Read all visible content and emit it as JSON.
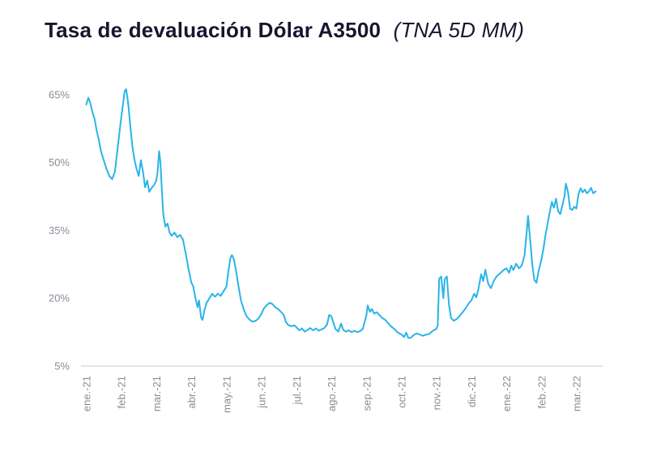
{
  "header": {
    "title": "Tasa de devaluación Dólar A3500",
    "subtitle": "(TNA 5D MM)"
  },
  "colors": {
    "line": "#29b4e8",
    "axis_line": "#d9dce1",
    "tick_text": "#8b8b98",
    "title_text": "#17162e",
    "background": "#ffffff"
  },
  "chart_data": {
    "type": "line",
    "title": "Tasa de devaluación Dólar A3500 (TNA 5D MM)",
    "xlabel": "",
    "ylabel": "",
    "grid": false,
    "legend": "none",
    "xlim": [
      -0.15,
      14.75
    ],
    "ylim": [
      5,
      68
    ],
    "y_ticks": [
      {
        "value": 5,
        "label": "5%"
      },
      {
        "value": 20,
        "label": "20%"
      },
      {
        "value": 35,
        "label": "35%"
      },
      {
        "value": 50,
        "label": "50%"
      },
      {
        "value": 65,
        "label": "65%"
      }
    ],
    "x_ticks": [
      {
        "value": 0,
        "label": "ene.-21"
      },
      {
        "value": 1,
        "label": "feb.-21"
      },
      {
        "value": 2,
        "label": "mar.-21"
      },
      {
        "value": 3,
        "label": "abr.-21"
      },
      {
        "value": 4,
        "label": "may.-21"
      },
      {
        "value": 5,
        "label": "jun.-21"
      },
      {
        "value": 6,
        "label": "jul.-21"
      },
      {
        "value": 7,
        "label": "ago.-21"
      },
      {
        "value": 8,
        "label": "sep.-21"
      },
      {
        "value": 9,
        "label": "oct.-21"
      },
      {
        "value": 10,
        "label": "nov.-21"
      },
      {
        "value": 11,
        "label": "dic.-21"
      },
      {
        "value": 12,
        "label": "ene.-22"
      },
      {
        "value": 13,
        "label": "feb.-22"
      },
      {
        "value": 14,
        "label": "mar.-22"
      }
    ],
    "series": [
      {
        "name": "TNA 5D MM",
        "points": [
          [
            0.0,
            62.8
          ],
          [
            0.06,
            64.3
          ],
          [
            0.12,
            63.0
          ],
          [
            0.18,
            61.0
          ],
          [
            0.24,
            59.5
          ],
          [
            0.3,
            57.0
          ],
          [
            0.36,
            55.0
          ],
          [
            0.42,
            52.5
          ],
          [
            0.5,
            50.5
          ],
          [
            0.58,
            48.5
          ],
          [
            0.66,
            47.0
          ],
          [
            0.74,
            46.3
          ],
          [
            0.82,
            48.0
          ],
          [
            0.88,
            52.0
          ],
          [
            0.94,
            56.0
          ],
          [
            1.0,
            60.0
          ],
          [
            1.06,
            63.5
          ],
          [
            1.1,
            65.8
          ],
          [
            1.14,
            66.2
          ],
          [
            1.2,
            63.0
          ],
          [
            1.26,
            58.0
          ],
          [
            1.32,
            53.5
          ],
          [
            1.38,
            50.5
          ],
          [
            1.44,
            48.5
          ],
          [
            1.5,
            47.0
          ],
          [
            1.56,
            50.5
          ],
          [
            1.62,
            48.0
          ],
          [
            1.68,
            44.5
          ],
          [
            1.74,
            46.0
          ],
          [
            1.8,
            43.5
          ],
          [
            1.88,
            44.5
          ],
          [
            1.94,
            45.0
          ],
          [
            2.0,
            46.0
          ],
          [
            2.04,
            48.0
          ],
          [
            2.08,
            52.5
          ],
          [
            2.12,
            50.0
          ],
          [
            2.16,
            44.0
          ],
          [
            2.2,
            38.5
          ],
          [
            2.26,
            35.8
          ],
          [
            2.32,
            36.5
          ],
          [
            2.38,
            34.5
          ],
          [
            2.44,
            33.8
          ],
          [
            2.52,
            34.5
          ],
          [
            2.6,
            33.5
          ],
          [
            2.68,
            34.0
          ],
          [
            2.76,
            33.0
          ],
          [
            2.84,
            30.0
          ],
          [
            2.92,
            26.5
          ],
          [
            3.0,
            23.5
          ],
          [
            3.06,
            22.5
          ],
          [
            3.12,
            20.0
          ],
          [
            3.18,
            18.0
          ],
          [
            3.22,
            19.5
          ],
          [
            3.28,
            15.8
          ],
          [
            3.32,
            15.2
          ],
          [
            3.38,
            17.5
          ],
          [
            3.44,
            19.0
          ],
          [
            3.52,
            20.0
          ],
          [
            3.6,
            21.0
          ],
          [
            3.68,
            20.3
          ],
          [
            3.76,
            21.0
          ],
          [
            3.84,
            20.5
          ],
          [
            3.92,
            21.5
          ],
          [
            4.0,
            22.5
          ],
          [
            4.06,
            26.0
          ],
          [
            4.12,
            29.0
          ],
          [
            4.16,
            29.5
          ],
          [
            4.22,
            28.5
          ],
          [
            4.28,
            26.0
          ],
          [
            4.34,
            23.0
          ],
          [
            4.42,
            19.5
          ],
          [
            4.5,
            17.5
          ],
          [
            4.58,
            16.0
          ],
          [
            4.66,
            15.3
          ],
          [
            4.74,
            14.8
          ],
          [
            4.84,
            15.0
          ],
          [
            4.92,
            15.5
          ],
          [
            5.0,
            16.5
          ],
          [
            5.08,
            17.8
          ],
          [
            5.16,
            18.5
          ],
          [
            5.24,
            19.0
          ],
          [
            5.32,
            18.7
          ],
          [
            5.4,
            18.0
          ],
          [
            5.48,
            17.6
          ],
          [
            5.56,
            17.0
          ],
          [
            5.64,
            16.3
          ],
          [
            5.7,
            14.8
          ],
          [
            5.78,
            14.0
          ],
          [
            5.86,
            13.8
          ],
          [
            5.94,
            14.0
          ],
          [
            6.0,
            13.6
          ],
          [
            6.08,
            12.9
          ],
          [
            6.16,
            13.3
          ],
          [
            6.24,
            12.6
          ],
          [
            6.32,
            13.0
          ],
          [
            6.4,
            13.4
          ],
          [
            6.48,
            12.9
          ],
          [
            6.56,
            13.3
          ],
          [
            6.64,
            12.8
          ],
          [
            6.72,
            13.1
          ],
          [
            6.8,
            13.4
          ],
          [
            6.88,
            14.2
          ],
          [
            6.94,
            16.3
          ],
          [
            7.0,
            16.0
          ],
          [
            7.06,
            14.6
          ],
          [
            7.12,
            13.2
          ],
          [
            7.2,
            12.6
          ],
          [
            7.28,
            14.4
          ],
          [
            7.34,
            13.0
          ],
          [
            7.42,
            12.6
          ],
          [
            7.5,
            12.9
          ],
          [
            7.58,
            12.5
          ],
          [
            7.66,
            12.8
          ],
          [
            7.74,
            12.5
          ],
          [
            7.82,
            12.7
          ],
          [
            7.9,
            13.2
          ],
          [
            8.0,
            16.2
          ],
          [
            8.04,
            18.4
          ],
          [
            8.1,
            17.0
          ],
          [
            8.16,
            17.6
          ],
          [
            8.22,
            16.6
          ],
          [
            8.3,
            16.9
          ],
          [
            8.38,
            16.2
          ],
          [
            8.46,
            15.6
          ],
          [
            8.54,
            15.2
          ],
          [
            8.62,
            14.5
          ],
          [
            8.7,
            13.8
          ],
          [
            8.8,
            13.2
          ],
          [
            8.9,
            12.4
          ],
          [
            9.0,
            12.0
          ],
          [
            9.08,
            11.4
          ],
          [
            9.14,
            12.4
          ],
          [
            9.2,
            11.2
          ],
          [
            9.28,
            11.3
          ],
          [
            9.36,
            11.9
          ],
          [
            9.44,
            12.2
          ],
          [
            9.52,
            12.0
          ],
          [
            9.6,
            11.7
          ],
          [
            9.7,
            11.9
          ],
          [
            9.8,
            12.1
          ],
          [
            9.9,
            12.8
          ],
          [
            10.0,
            13.2
          ],
          [
            10.04,
            14.0
          ],
          [
            10.08,
            24.3
          ],
          [
            10.14,
            24.8
          ],
          [
            10.2,
            20.0
          ],
          [
            10.24,
            24.2
          ],
          [
            10.3,
            24.8
          ],
          [
            10.36,
            18.5
          ],
          [
            10.42,
            15.6
          ],
          [
            10.5,
            15.0
          ],
          [
            10.58,
            15.4
          ],
          [
            10.66,
            16.0
          ],
          [
            10.74,
            16.8
          ],
          [
            10.84,
            17.8
          ],
          [
            10.92,
            18.8
          ],
          [
            11.0,
            19.5
          ],
          [
            11.08,
            21.0
          ],
          [
            11.14,
            20.2
          ],
          [
            11.2,
            22.0
          ],
          [
            11.28,
            25.3
          ],
          [
            11.34,
            23.8
          ],
          [
            11.4,
            26.3
          ],
          [
            11.48,
            23.2
          ],
          [
            11.56,
            22.2
          ],
          [
            11.64,
            23.8
          ],
          [
            11.72,
            24.8
          ],
          [
            11.82,
            25.5
          ],
          [
            11.92,
            26.2
          ],
          [
            12.0,
            26.6
          ],
          [
            12.08,
            25.6
          ],
          [
            12.14,
            27.2
          ],
          [
            12.2,
            26.2
          ],
          [
            12.28,
            27.6
          ],
          [
            12.36,
            26.6
          ],
          [
            12.44,
            27.2
          ],
          [
            12.52,
            29.5
          ],
          [
            12.58,
            34.5
          ],
          [
            12.62,
            38.2
          ],
          [
            12.68,
            33.0
          ],
          [
            12.74,
            27.5
          ],
          [
            12.8,
            24.0
          ],
          [
            12.86,
            23.4
          ],
          [
            12.92,
            26.0
          ],
          [
            13.0,
            28.5
          ],
          [
            13.06,
            31.0
          ],
          [
            13.12,
            34.0
          ],
          [
            13.18,
            36.5
          ],
          [
            13.24,
            39.0
          ],
          [
            13.3,
            41.3
          ],
          [
            13.36,
            40.0
          ],
          [
            13.42,
            42.0
          ],
          [
            13.48,
            39.2
          ],
          [
            13.54,
            38.6
          ],
          [
            13.6,
            40.5
          ],
          [
            13.66,
            42.5
          ],
          [
            13.7,
            45.3
          ],
          [
            13.76,
            43.5
          ],
          [
            13.82,
            39.8
          ],
          [
            13.88,
            39.5
          ],
          [
            13.94,
            40.2
          ],
          [
            14.0,
            39.8
          ],
          [
            14.06,
            43.0
          ],
          [
            14.12,
            44.3
          ],
          [
            14.18,
            43.4
          ],
          [
            14.24,
            44.0
          ],
          [
            14.3,
            43.2
          ],
          [
            14.36,
            43.6
          ],
          [
            14.42,
            44.4
          ],
          [
            14.48,
            43.2
          ],
          [
            14.55,
            43.6
          ]
        ]
      }
    ]
  }
}
